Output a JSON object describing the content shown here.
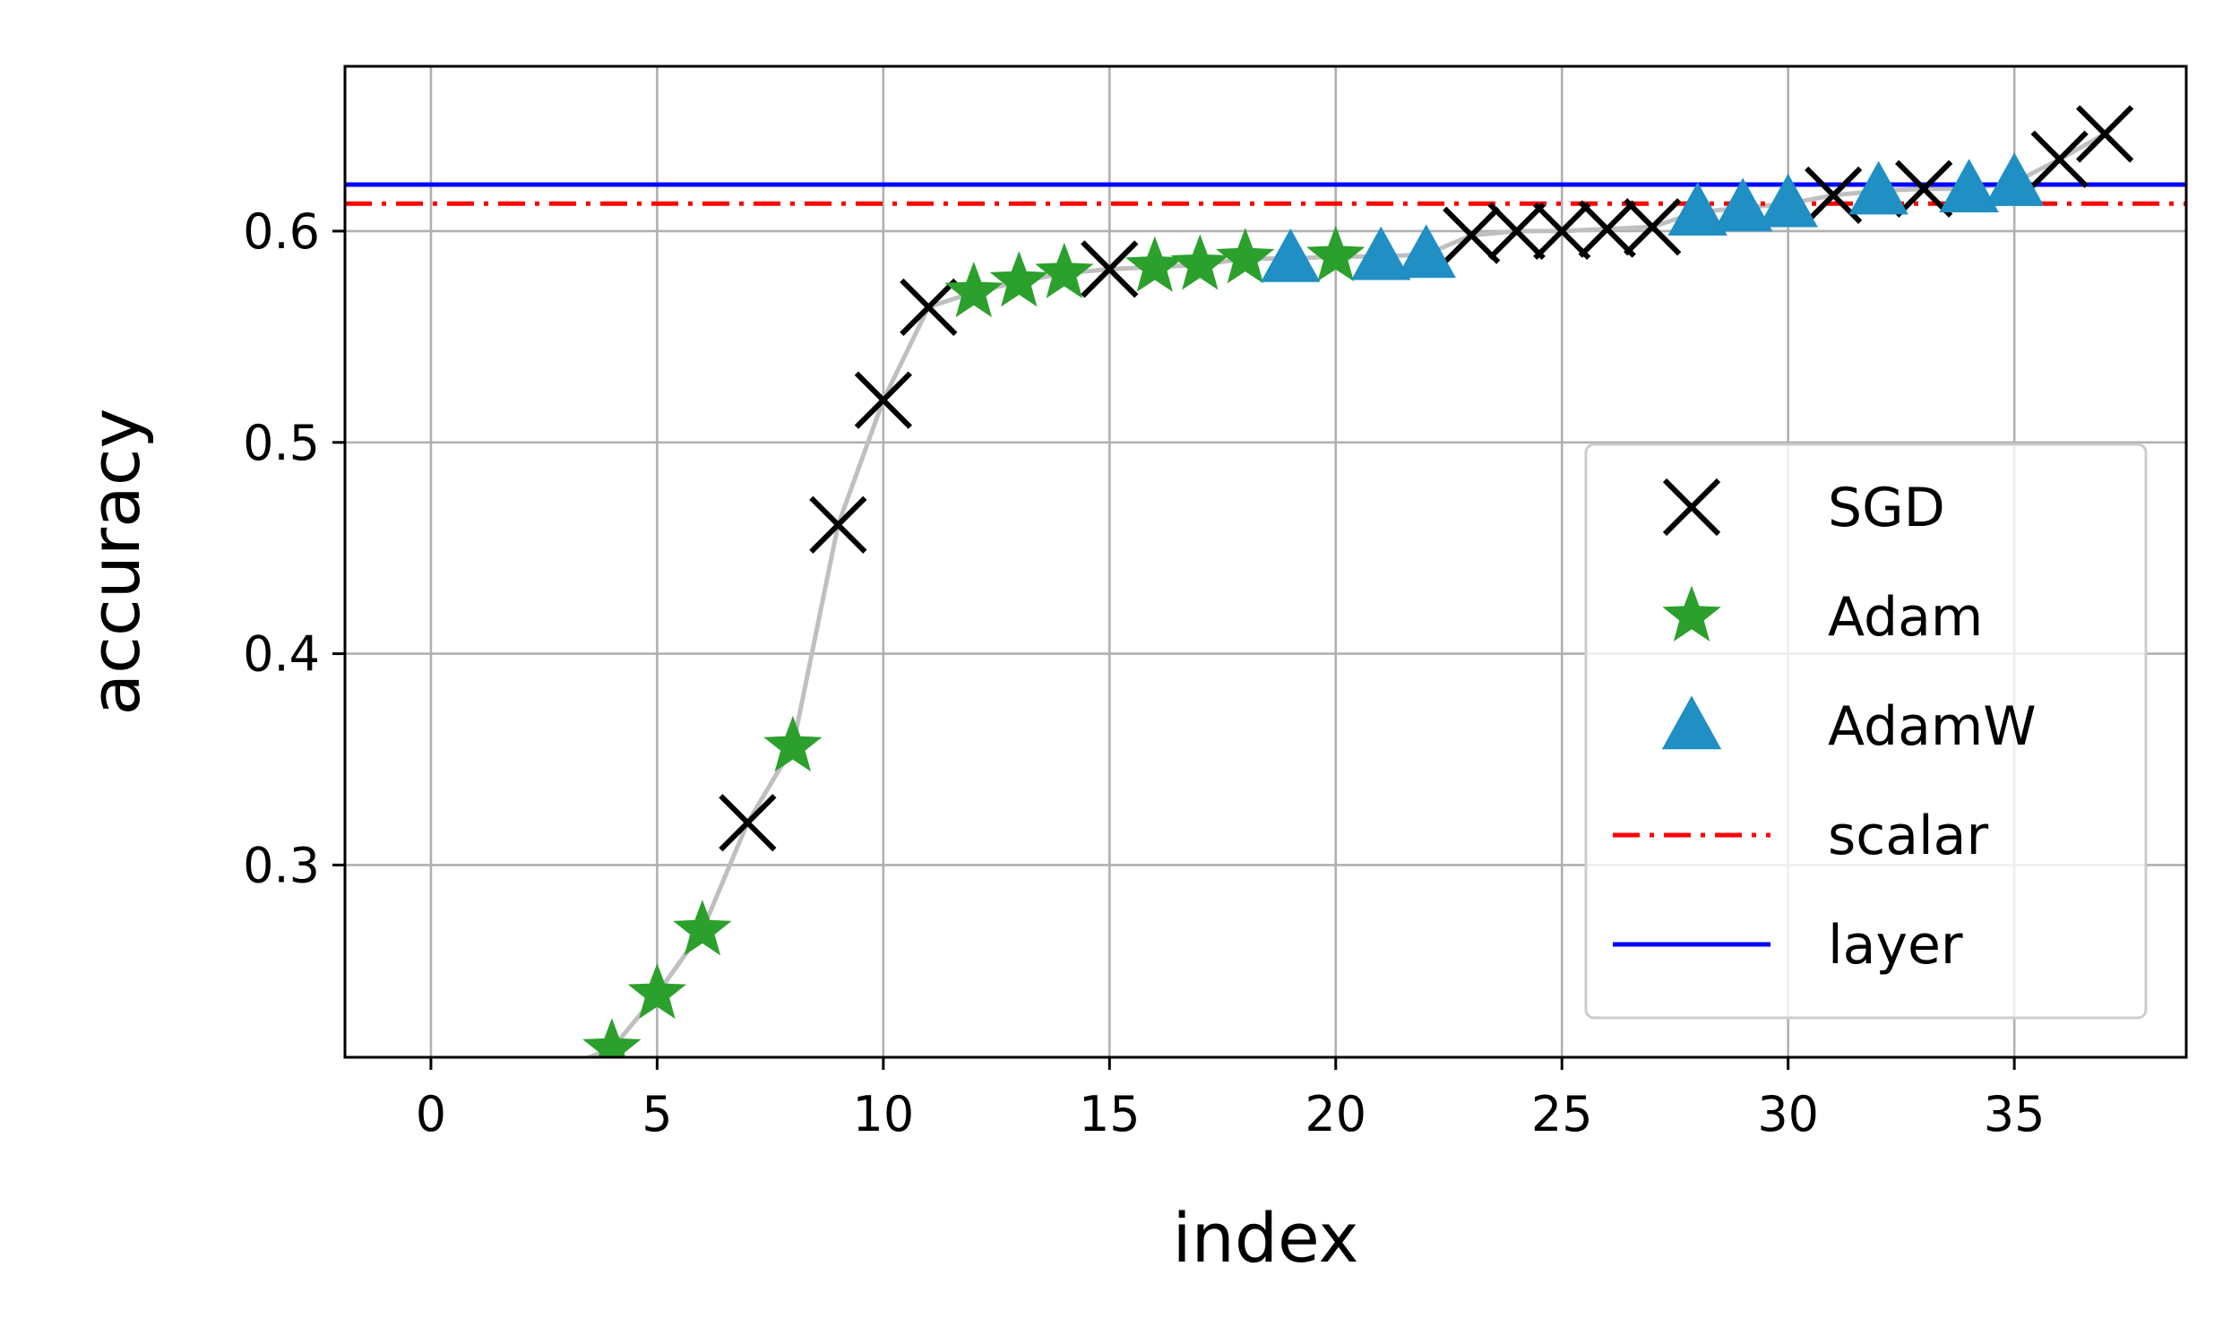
{
  "chart_data": {
    "type": "scatter",
    "title": "",
    "xlabel": "index",
    "ylabel": "accuracy",
    "xlim": [
      -1.9,
      38.8
    ],
    "ylim": [
      0.209,
      0.678
    ],
    "xticks": [
      0,
      5,
      10,
      15,
      20,
      25,
      30,
      35
    ],
    "yticks": [
      0.3,
      0.4,
      0.5,
      0.6
    ],
    "xtick_labels": [
      "0",
      "5",
      "10",
      "15",
      "20",
      "25",
      "30",
      "35"
    ],
    "ytick_labels": [
      "0.3",
      "0.4",
      "0.5",
      "0.6"
    ],
    "grid": true,
    "legend_position": "lower-right",
    "trend_line": {
      "color": "#bfbfbf",
      "x": [
        3,
        4,
        5,
        6,
        7,
        8,
        9,
        10,
        11,
        12,
        13,
        14,
        15,
        16,
        17,
        18,
        19,
        20,
        21,
        22,
        23,
        24,
        25,
        26,
        27,
        28,
        29,
        30,
        31,
        32,
        33,
        34,
        35,
        36,
        37
      ],
      "y": [
        0.205,
        0.213,
        0.239,
        0.269,
        0.32,
        0.356,
        0.461,
        0.52,
        0.564,
        0.571,
        0.576,
        0.58,
        0.582,
        0.583,
        0.584,
        0.587,
        0.587,
        0.588,
        0.588,
        0.589,
        0.598,
        0.6,
        0.6,
        0.601,
        0.602,
        0.609,
        0.611,
        0.613,
        0.617,
        0.619,
        0.62,
        0.62,
        0.623,
        0.634,
        0.646
      ]
    },
    "series": [
      {
        "name": "SGD",
        "marker": "x",
        "color": "#000000",
        "x": [
          7,
          9,
          10,
          11,
          15,
          23,
          24,
          25,
          26,
          27,
          31,
          33,
          36,
          37
        ],
        "y": [
          0.32,
          0.461,
          0.52,
          0.564,
          0.582,
          0.598,
          0.6,
          0.6,
          0.601,
          0.602,
          0.617,
          0.62,
          0.634,
          0.646
        ]
      },
      {
        "name": "Adam",
        "marker": "star",
        "color": "#2ca02c",
        "x": [
          4,
          5,
          6,
          8,
          12,
          13,
          14,
          16,
          17,
          18,
          20
        ],
        "y": [
          0.213,
          0.239,
          0.269,
          0.356,
          0.571,
          0.576,
          0.58,
          0.583,
          0.584,
          0.587,
          0.588
        ]
      },
      {
        "name": "AdamW",
        "marker": "triangle",
        "color": "#1f8fc4",
        "x": [
          19,
          21,
          22,
          28,
          29,
          30,
          32,
          34,
          35
        ],
        "y": [
          0.587,
          0.588,
          0.589,
          0.609,
          0.611,
          0.613,
          0.619,
          0.62,
          0.623
        ]
      }
    ],
    "reference_lines": [
      {
        "name": "scalar",
        "value": 0.613,
        "color": "#ff0000",
        "style": "dash-dot"
      },
      {
        "name": "layer",
        "value": 0.622,
        "color": "#0000ff",
        "style": "solid"
      }
    ]
  }
}
